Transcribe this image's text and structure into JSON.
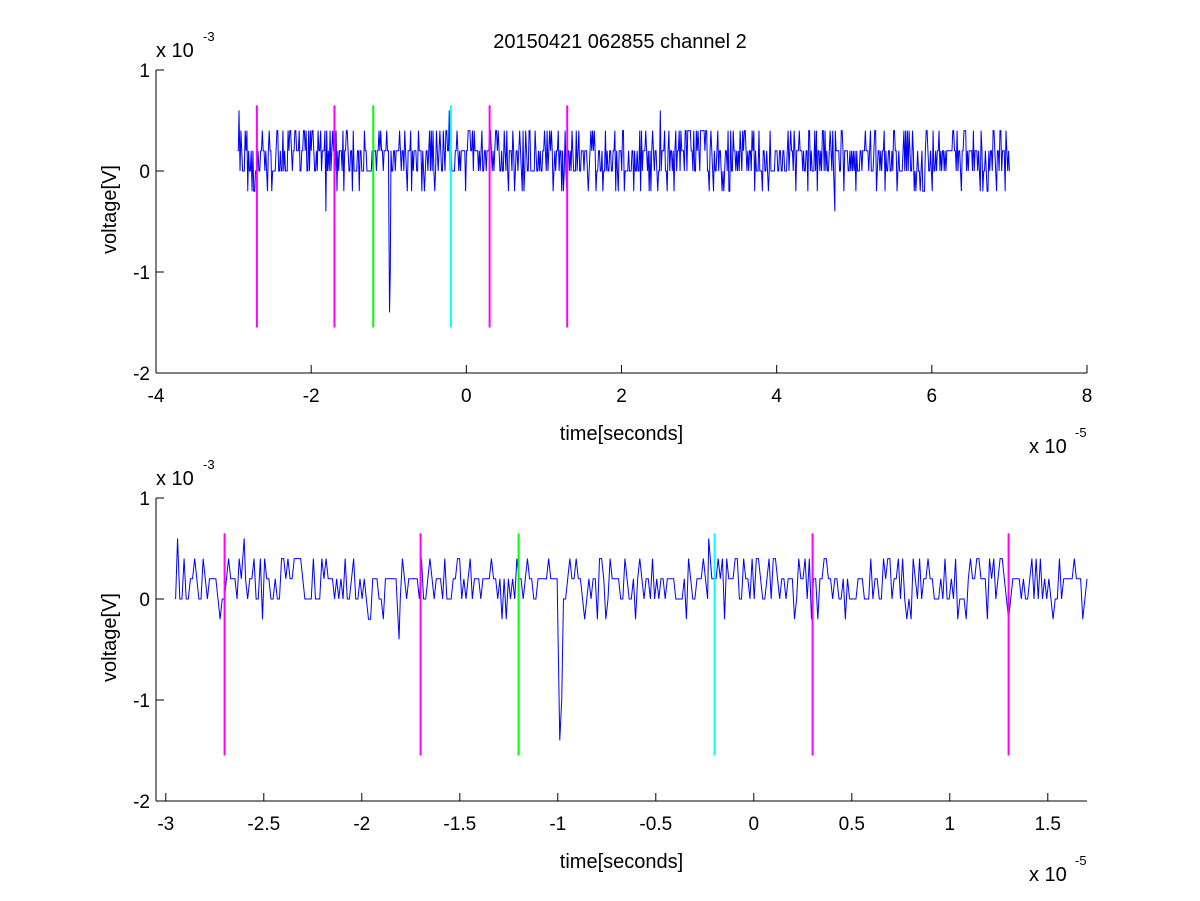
{
  "figure": {
    "title": "20150421 062855 channel 2",
    "background": "#ffffff"
  },
  "chart_data": [
    {
      "type": "line",
      "title": "20150421 062855 channel 2",
      "xlabel": "time[seconds]",
      "ylabel": "voltage[V]",
      "x_exponent_label": "x 10",
      "x_exponent": "-5",
      "y_exponent_label": "x 10",
      "y_exponent": "-3",
      "xlim": [
        -4,
        8
      ],
      "ylim": [
        -2,
        1
      ],
      "xticks": [
        -4,
        -2,
        0,
        2,
        4,
        6,
        8
      ],
      "xtick_labels": [
        "-4",
        "-2",
        "0",
        "2",
        "4",
        "6",
        "8"
      ],
      "yticks": [
        -2,
        -1,
        0,
        1
      ],
      "ytick_labels": [
        "-2",
        "-1",
        "0",
        "1"
      ],
      "grid": false,
      "signal": {
        "color": "#0000ff",
        "x_range": [
          -2.95,
          7.0
        ],
        "baseline_levels": [
          0,
          0.2,
          0.4
        ],
        "spikes": [
          {
            "x": -2.93,
            "y": 0.6
          },
          {
            "x": -1.81,
            "y": -0.4
          },
          {
            "x": -0.99,
            "y": -1.4
          },
          {
            "x": -0.98,
            "y": -1.0
          },
          {
            "x": -0.22,
            "y": 0.6
          },
          {
            "x": 2.5,
            "y": 0.6
          },
          {
            "x": 4.75,
            "y": -0.4
          }
        ]
      },
      "markers": [
        {
          "x": -2.7,
          "y_top": 0.65,
          "y_bottom": -1.55,
          "color": "#ff00ff"
        },
        {
          "x": -1.7,
          "y_top": 0.65,
          "y_bottom": -1.55,
          "color": "#ff00ff"
        },
        {
          "x": -1.2,
          "y_top": 0.65,
          "y_bottom": -1.55,
          "color": "#00ff00"
        },
        {
          "x": -0.2,
          "y_top": 0.65,
          "y_bottom": -1.55,
          "color": "#00ffff"
        },
        {
          "x": 0.3,
          "y_top": 0.65,
          "y_bottom": -1.55,
          "color": "#ff00ff"
        },
        {
          "x": 1.3,
          "y_top": 0.65,
          "y_bottom": -1.55,
          "color": "#ff00ff"
        }
      ]
    },
    {
      "type": "line",
      "title": "",
      "xlabel": "time[seconds]",
      "ylabel": "voltage[V]",
      "x_exponent_label": "x 10",
      "x_exponent": "-5",
      "y_exponent_label": "x 10",
      "y_exponent": "-3",
      "xlim": [
        -3.05,
        1.7
      ],
      "ylim": [
        -2,
        1
      ],
      "xticks": [
        -3,
        -2.5,
        -2,
        -1.5,
        -1,
        -0.5,
        0,
        0.5,
        1,
        1.5
      ],
      "xtick_labels": [
        "-3",
        "-2.5",
        "-2",
        "-1.5",
        "-1",
        "-0.5",
        "0",
        "0.5",
        "1",
        "1.5"
      ],
      "yticks": [
        -2,
        -1,
        0,
        1
      ],
      "ytick_labels": [
        "-2",
        "-1",
        "0",
        "1"
      ],
      "grid": false,
      "signal": {
        "color": "#0000ff",
        "x_range": [
          -2.95,
          1.7
        ],
        "baseline_levels": [
          0,
          0.2,
          0.4
        ],
        "spikes": [
          {
            "x": -2.94,
            "y": 0.6
          },
          {
            "x": -2.6,
            "y": 0.6
          },
          {
            "x": -1.81,
            "y": -0.4
          },
          {
            "x": -0.99,
            "y": -1.4
          },
          {
            "x": -0.98,
            "y": -1.0
          },
          {
            "x": -0.23,
            "y": 0.6
          },
          {
            "x": 1.3,
            "y": -0.2
          }
        ]
      },
      "markers": [
        {
          "x": -2.7,
          "y_top": 0.65,
          "y_bottom": -1.55,
          "color": "#ff00ff"
        },
        {
          "x": -1.7,
          "y_top": 0.65,
          "y_bottom": -1.55,
          "color": "#ff00ff"
        },
        {
          "x": -1.2,
          "y_top": 0.65,
          "y_bottom": -1.55,
          "color": "#00ff00"
        },
        {
          "x": -0.2,
          "y_top": 0.65,
          "y_bottom": -1.55,
          "color": "#00ffff"
        },
        {
          "x": 0.3,
          "y_top": 0.65,
          "y_bottom": -1.55,
          "color": "#ff00ff"
        },
        {
          "x": 1.3,
          "y_top": 0.65,
          "y_bottom": -1.55,
          "color": "#ff00ff"
        }
      ]
    }
  ]
}
